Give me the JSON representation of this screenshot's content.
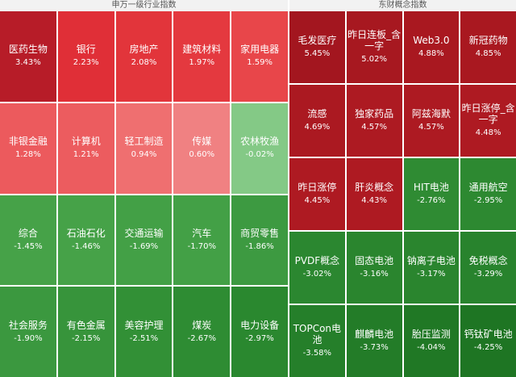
{
  "left_panel": {
    "title": "申万一级行业指数",
    "tiles": [
      {
        "name": "医药生物",
        "pct": "3.43%",
        "color": "#b71c28"
      },
      {
        "name": "银行",
        "pct": "2.23%",
        "color": "#e02f37"
      },
      {
        "name": "房地产",
        "pct": "2.08%",
        "color": "#e2353b"
      },
      {
        "name": "建筑材料",
        "pct": "1.97%",
        "color": "#e4393f"
      },
      {
        "name": "家用电器",
        "pct": "1.59%",
        "color": "#e8464a"
      },
      {
        "name": "非银金融",
        "pct": "1.28%",
        "color": "#ec5a5d"
      },
      {
        "name": "计算机",
        "pct": "1.21%",
        "color": "#ec5c5f"
      },
      {
        "name": "轻工制造",
        "pct": "0.94%",
        "color": "#ef6f70"
      },
      {
        "name": "传媒",
        "pct": "0.60%",
        "color": "#f08182"
      },
      {
        "name": "农林牧渔",
        "pct": "-0.02%",
        "color": "#84c986"
      },
      {
        "name": "综合",
        "pct": "-1.45%",
        "color": "#46a248"
      },
      {
        "name": "石油石化",
        "pct": "-1.46%",
        "color": "#46a248"
      },
      {
        "name": "交通运输",
        "pct": "-1.69%",
        "color": "#43a046"
      },
      {
        "name": "汽车",
        "pct": "-1.70%",
        "color": "#43a046"
      },
      {
        "name": "商贸零售",
        "pct": "-1.86%",
        "color": "#3d9a41"
      },
      {
        "name": "社会服务",
        "pct": "-1.90%",
        "color": "#3b983f"
      },
      {
        "name": "有色金属",
        "pct": "-2.15%",
        "color": "#37943b"
      },
      {
        "name": "美容护理",
        "pct": "-2.51%",
        "color": "#329036"
      },
      {
        "name": "煤炭",
        "pct": "-2.67%",
        "color": "#2e8c33"
      },
      {
        "name": "电力设备",
        "pct": "-2.97%",
        "color": "#2a882f"
      }
    ]
  },
  "right_panel": {
    "title": "东财概念指数",
    "tiles": [
      {
        "name": "毛发医疗",
        "pct": "5.45%",
        "color": "#a3161f"
      },
      {
        "name": "昨日连板_含\n一字",
        "pct": "5.02%",
        "color": "#a71820"
      },
      {
        "name": "Web3.0",
        "pct": "4.88%",
        "color": "#a91820"
      },
      {
        "name": "新冠药物",
        "pct": "4.85%",
        "color": "#a91820"
      },
      {
        "name": "流感",
        "pct": "4.69%",
        "color": "#ab1921"
      },
      {
        "name": "独家药品",
        "pct": "4.57%",
        "color": "#ad1a22"
      },
      {
        "name": "阿兹海默",
        "pct": "4.57%",
        "color": "#ad1a22"
      },
      {
        "name": "昨日涨停_含\n一字",
        "pct": "4.48%",
        "color": "#ae1a22"
      },
      {
        "name": "昨日涨停",
        "pct": "4.45%",
        "color": "#ae1a22"
      },
      {
        "name": "肝炎概念",
        "pct": "4.43%",
        "color": "#ae1a22"
      },
      {
        "name": "HIT电池",
        "pct": "-2.76%",
        "color": "#2f8b33"
      },
      {
        "name": "通用航空",
        "pct": "-2.95%",
        "color": "#2d8931"
      },
      {
        "name": "PVDF概念",
        "pct": "-3.02%",
        "color": "#2b8730"
      },
      {
        "name": "固态电池",
        "pct": "-3.16%",
        "color": "#2a852e"
      },
      {
        "name": "钠离子电池",
        "pct": "-3.17%",
        "color": "#2a852e"
      },
      {
        "name": "免税概念",
        "pct": "-3.29%",
        "color": "#28832d"
      },
      {
        "name": "TOPCon电\n池",
        "pct": "-3.58%",
        "color": "#257f2a"
      },
      {
        "name": "麒麟电池",
        "pct": "-3.73%",
        "color": "#237c28"
      },
      {
        "name": "胎压监测",
        "pct": "-4.04%",
        "color": "#207825"
      },
      {
        "name": "钙钛矿电池",
        "pct": "-4.25%",
        "color": "#1e7523"
      }
    ]
  }
}
